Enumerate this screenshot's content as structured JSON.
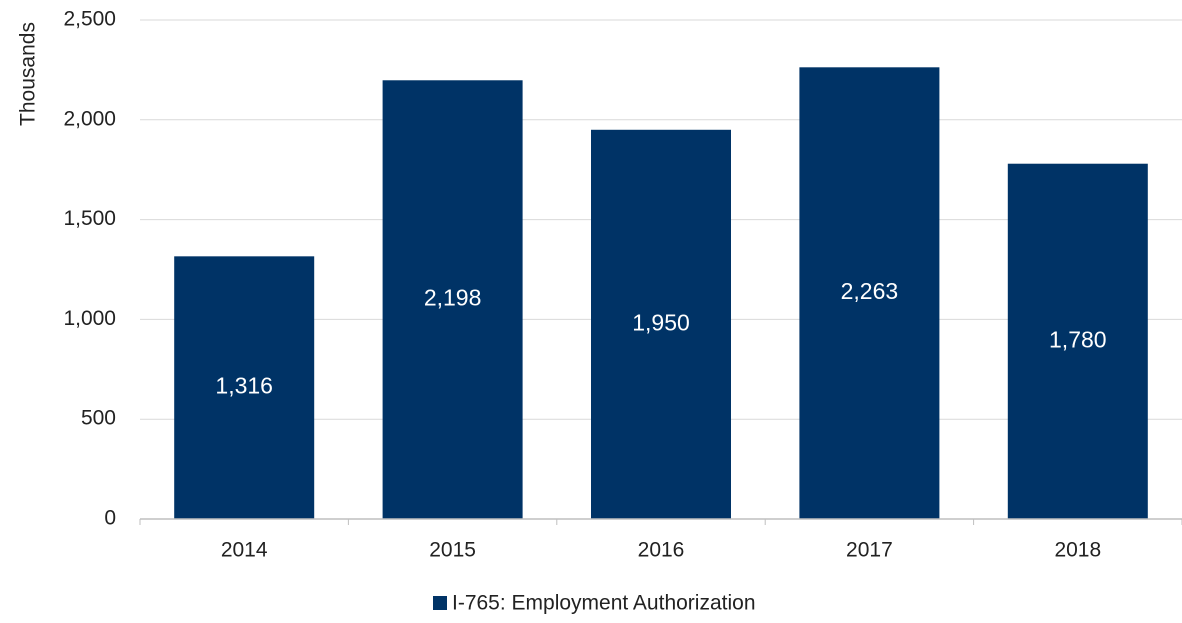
{
  "chart_data": {
    "type": "bar",
    "categories": [
      "2014",
      "2015",
      "2016",
      "2017",
      "2018"
    ],
    "series": [
      {
        "name": "I-765: Employment Authorization",
        "values": [
          1316,
          2198,
          1950,
          2263,
          1780
        ],
        "data_labels": [
          "1,316",
          "2,198",
          "1,950",
          "2,263",
          "1,780"
        ],
        "color": "#003366"
      }
    ],
    "ylabel": "Thousands",
    "ylim": [
      0,
      2500
    ],
    "yticks": [
      0,
      500,
      1000,
      1500,
      2000,
      2500
    ],
    "ytick_labels": [
      "0",
      "500",
      "1,000",
      "1,500",
      "2,000",
      "2,500"
    ],
    "grid": true,
    "legend_position": "bottom"
  },
  "colors": {
    "bar": "#003366",
    "grid": "#d9d9d9",
    "axis": "#bfbfbf",
    "text": "#222222",
    "data_label": "#ffffff"
  }
}
